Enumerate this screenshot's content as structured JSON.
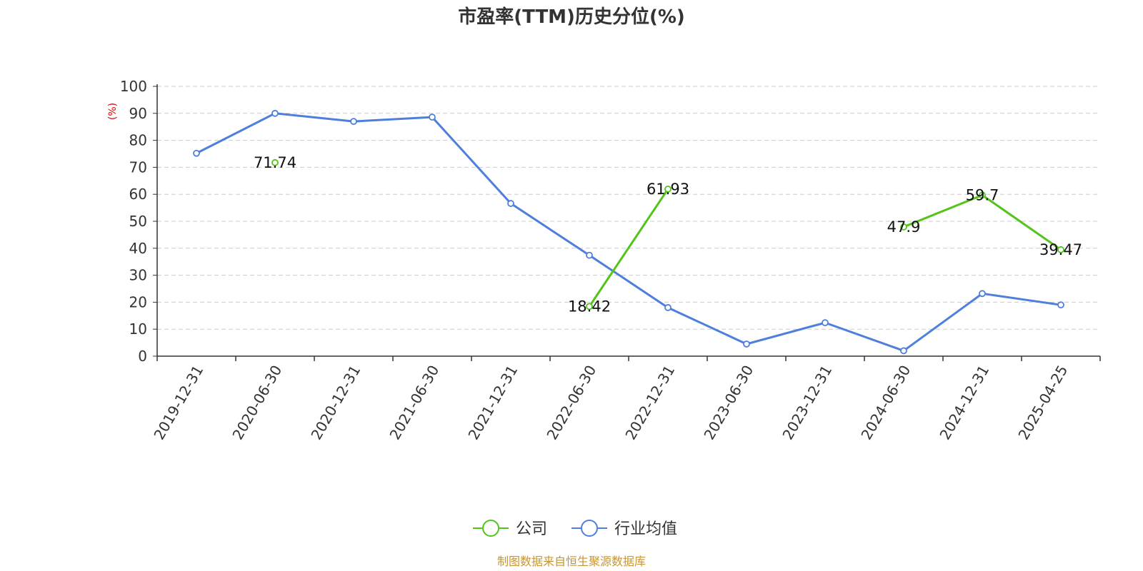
{
  "chart_data": {
    "type": "line",
    "title": "市盈率(TTM)历史分位(%)",
    "ylabel": "(%)",
    "ylim": [
      0,
      100
    ],
    "yticks": [
      0,
      10,
      20,
      30,
      40,
      50,
      60,
      70,
      80,
      90,
      100
    ],
    "grid": true,
    "legend_position": "bottom",
    "categories": [
      "2019-12-31",
      "2020-06-30",
      "2020-12-31",
      "2021-06-30",
      "2021-12-31",
      "2022-06-30",
      "2022-12-31",
      "2023-06-30",
      "2023-12-31",
      "2024-06-30",
      "2024-12-31",
      "2025-04-25"
    ],
    "series": [
      {
        "name": "公司",
        "color": "#52c41a",
        "show_labels": true,
        "values": [
          null,
          71.74,
          null,
          null,
          null,
          18.42,
          61.93,
          null,
          null,
          47.9,
          59.7,
          39.47
        ],
        "labels": [
          null,
          "71.74",
          null,
          null,
          null,
          "18.42",
          "61.93",
          null,
          null,
          "47.9",
          "59.7",
          "39.47"
        ]
      },
      {
        "name": "行业均值",
        "color": "#4e7fdc",
        "show_labels": false,
        "values": [
          75.2,
          90.0,
          87.0,
          88.6,
          56.6,
          37.4,
          18.0,
          4.5,
          12.4,
          2.0,
          23.2,
          19.0
        ]
      }
    ]
  },
  "source_text": "制图数据来自恒生聚源数据库"
}
